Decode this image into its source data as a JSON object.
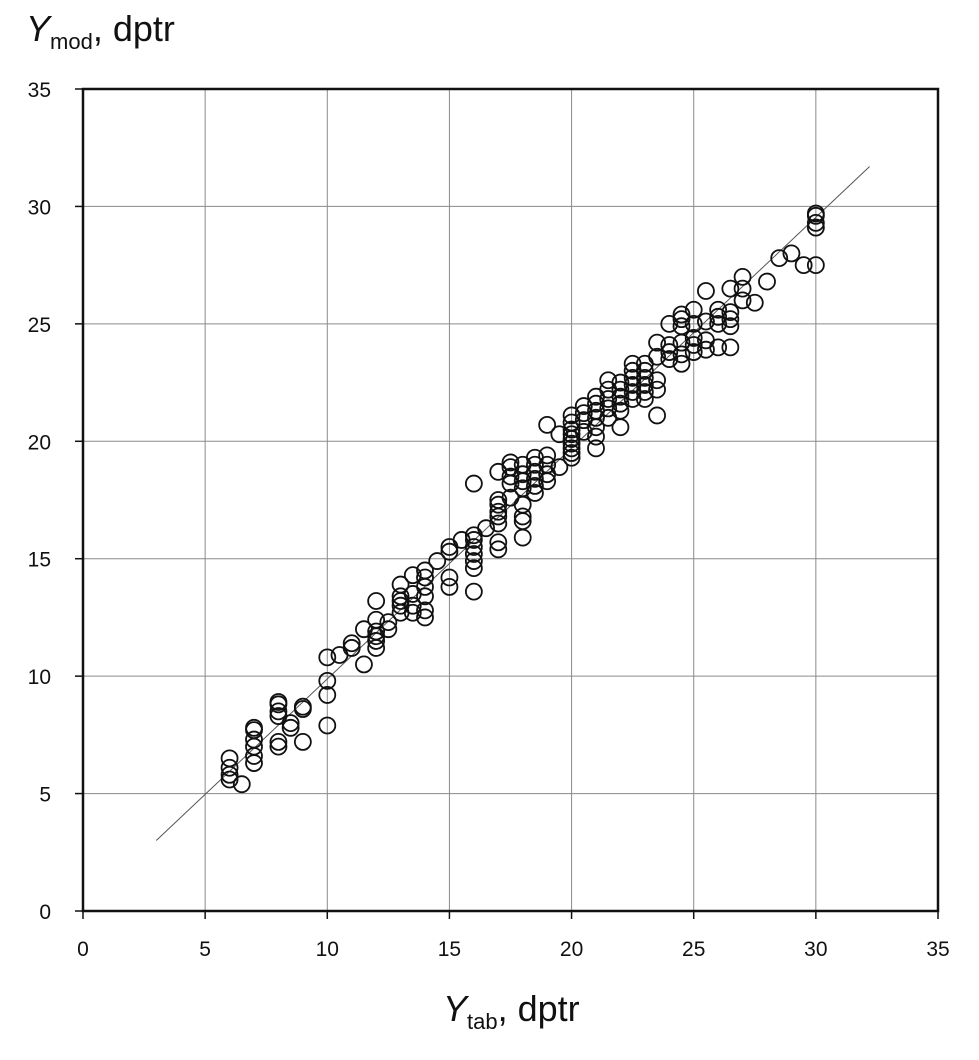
{
  "chart_data": {
    "type": "scatter",
    "title": "",
    "ylabel": {
      "var": "Y",
      "sub": "mod",
      "unit": ", dptr"
    },
    "xlabel": {
      "var": "Y",
      "sub": "tab",
      "unit": ", dptr"
    },
    "xlim": [
      0,
      35
    ],
    "ylim": [
      0,
      35
    ],
    "xticks": [
      0,
      5,
      10,
      15,
      20,
      25,
      30,
      35
    ],
    "yticks": [
      0,
      5,
      10,
      15,
      20,
      25,
      30,
      35
    ],
    "grid": true,
    "reference_line": {
      "from": [
        3,
        3
      ],
      "to": [
        32.2,
        31.7
      ]
    },
    "marker": "open-circle",
    "points": [
      [
        6.0,
        5.6
      ],
      [
        6.0,
        5.8
      ],
      [
        6.0,
        6.1
      ],
      [
        6.0,
        6.5
      ],
      [
        6.5,
        5.4
      ],
      [
        7.0,
        6.3
      ],
      [
        7.0,
        6.6
      ],
      [
        7.0,
        7.0
      ],
      [
        7.0,
        7.3
      ],
      [
        7.0,
        7.7
      ],
      [
        7.0,
        7.8
      ],
      [
        8.0,
        7.0
      ],
      [
        8.0,
        7.2
      ],
      [
        8.0,
        8.3
      ],
      [
        8.0,
        8.5
      ],
      [
        8.0,
        8.8
      ],
      [
        8.0,
        8.9
      ],
      [
        8.5,
        7.8
      ],
      [
        8.5,
        8.0
      ],
      [
        9.0,
        7.2
      ],
      [
        9.0,
        8.6
      ],
      [
        9.0,
        8.7
      ],
      [
        10.0,
        7.9
      ],
      [
        10.0,
        9.2
      ],
      [
        10.0,
        9.8
      ],
      [
        10.0,
        10.8
      ],
      [
        10.5,
        10.9
      ],
      [
        11.0,
        11.2
      ],
      [
        11.0,
        11.4
      ],
      [
        11.5,
        10.5
      ],
      [
        11.5,
        12.0
      ],
      [
        12.0,
        11.2
      ],
      [
        12.0,
        11.5
      ],
      [
        12.0,
        11.7
      ],
      [
        12.0,
        11.9
      ],
      [
        12.0,
        12.4
      ],
      [
        12.0,
        13.2
      ],
      [
        12.5,
        12.0
      ],
      [
        12.5,
        12.3
      ],
      [
        13.0,
        12.7
      ],
      [
        13.0,
        13.0
      ],
      [
        13.0,
        13.2
      ],
      [
        13.0,
        13.4
      ],
      [
        13.0,
        13.9
      ],
      [
        13.5,
        12.7
      ],
      [
        13.5,
        13.0
      ],
      [
        13.5,
        13.5
      ],
      [
        13.5,
        14.3
      ],
      [
        14.0,
        12.5
      ],
      [
        14.0,
        12.8
      ],
      [
        14.0,
        13.4
      ],
      [
        14.0,
        13.8
      ],
      [
        14.0,
        14.2
      ],
      [
        14.0,
        14.5
      ],
      [
        14.5,
        14.9
      ],
      [
        15.0,
        13.8
      ],
      [
        15.0,
        14.2
      ],
      [
        15.0,
        15.3
      ],
      [
        15.0,
        15.5
      ],
      [
        15.5,
        15.8
      ],
      [
        16.0,
        13.6
      ],
      [
        16.0,
        14.6
      ],
      [
        16.0,
        14.9
      ],
      [
        16.0,
        15.2
      ],
      [
        16.0,
        15.5
      ],
      [
        16.0,
        15.8
      ],
      [
        16.0,
        16.0
      ],
      [
        16.0,
        18.2
      ],
      [
        16.5,
        16.3
      ],
      [
        17.0,
        15.4
      ],
      [
        17.0,
        15.7
      ],
      [
        17.0,
        16.5
      ],
      [
        17.0,
        16.8
      ],
      [
        17.0,
        17.0
      ],
      [
        17.0,
        17.3
      ],
      [
        17.0,
        17.5
      ],
      [
        17.0,
        18.7
      ],
      [
        17.5,
        17.6
      ],
      [
        17.5,
        18.2
      ],
      [
        17.5,
        18.5
      ],
      [
        17.5,
        18.9
      ],
      [
        17.5,
        19.1
      ],
      [
        18.0,
        15.9
      ],
      [
        18.0,
        16.6
      ],
      [
        18.0,
        16.8
      ],
      [
        18.0,
        17.3
      ],
      [
        18.0,
        18.0
      ],
      [
        18.0,
        18.3
      ],
      [
        18.0,
        18.6
      ],
      [
        18.0,
        19.0
      ],
      [
        18.5,
        17.8
      ],
      [
        18.5,
        18.1
      ],
      [
        18.5,
        18.4
      ],
      [
        18.5,
        18.7
      ],
      [
        18.5,
        19.0
      ],
      [
        18.5,
        19.3
      ],
      [
        19.0,
        18.3
      ],
      [
        19.0,
        18.6
      ],
      [
        19.0,
        19.0
      ],
      [
        19.0,
        19.4
      ],
      [
        19.0,
        20.7
      ],
      [
        19.5,
        18.9
      ],
      [
        19.5,
        20.3
      ],
      [
        20.0,
        19.3
      ],
      [
        20.0,
        19.5
      ],
      [
        20.0,
        19.7
      ],
      [
        20.0,
        19.9
      ],
      [
        20.0,
        20.1
      ],
      [
        20.0,
        20.3
      ],
      [
        20.0,
        20.5
      ],
      [
        20.0,
        20.8
      ],
      [
        20.0,
        21.1
      ],
      [
        20.5,
        20.4
      ],
      [
        20.5,
        20.9
      ],
      [
        20.5,
        21.2
      ],
      [
        20.5,
        21.5
      ],
      [
        21.0,
        19.7
      ],
      [
        21.0,
        20.2
      ],
      [
        21.0,
        20.6
      ],
      [
        21.0,
        21.0
      ],
      [
        21.0,
        21.3
      ],
      [
        21.0,
        21.6
      ],
      [
        21.0,
        21.9
      ],
      [
        21.5,
        21.0
      ],
      [
        21.5,
        21.4
      ],
      [
        21.5,
        21.8
      ],
      [
        21.5,
        22.2
      ],
      [
        21.5,
        22.6
      ],
      [
        22.0,
        20.6
      ],
      [
        22.0,
        21.3
      ],
      [
        22.0,
        21.6
      ],
      [
        22.0,
        21.9
      ],
      [
        22.0,
        22.2
      ],
      [
        22.0,
        22.5
      ],
      [
        22.5,
        21.8
      ],
      [
        22.5,
        22.1
      ],
      [
        22.5,
        22.4
      ],
      [
        22.5,
        22.7
      ],
      [
        22.5,
        23.0
      ],
      [
        22.5,
        23.3
      ],
      [
        23.0,
        21.8
      ],
      [
        23.0,
        22.1
      ],
      [
        23.0,
        22.4
      ],
      [
        23.0,
        22.7
      ],
      [
        23.0,
        23.0
      ],
      [
        23.0,
        23.3
      ],
      [
        23.5,
        21.1
      ],
      [
        23.5,
        22.2
      ],
      [
        23.5,
        22.6
      ],
      [
        23.5,
        23.6
      ],
      [
        23.5,
        24.2
      ],
      [
        24.0,
        23.5
      ],
      [
        24.0,
        23.8
      ],
      [
        24.0,
        24.1
      ],
      [
        24.0,
        25.0
      ],
      [
        24.5,
        23.3
      ],
      [
        24.5,
        23.7
      ],
      [
        24.5,
        24.2
      ],
      [
        24.5,
        24.9
      ],
      [
        24.5,
        25.2
      ],
      [
        24.5,
        25.4
      ],
      [
        25.0,
        23.8
      ],
      [
        25.0,
        24.1
      ],
      [
        25.0,
        24.4
      ],
      [
        25.0,
        25.0
      ],
      [
        25.0,
        25.6
      ],
      [
        25.5,
        23.9
      ],
      [
        25.5,
        24.3
      ],
      [
        25.5,
        25.1
      ],
      [
        25.5,
        26.4
      ],
      [
        26.0,
        24.0
      ],
      [
        26.0,
        25.0
      ],
      [
        26.0,
        25.3
      ],
      [
        26.0,
        25.6
      ],
      [
        26.5,
        24.0
      ],
      [
        26.5,
        24.9
      ],
      [
        26.5,
        25.2
      ],
      [
        26.5,
        25.5
      ],
      [
        26.5,
        26.5
      ],
      [
        27.0,
        26.0
      ],
      [
        27.0,
        26.5
      ],
      [
        27.0,
        27.0
      ],
      [
        27.5,
        25.9
      ],
      [
        28.0,
        26.8
      ],
      [
        28.5,
        27.8
      ],
      [
        29.0,
        28.0
      ],
      [
        29.5,
        27.5
      ],
      [
        30.0,
        27.5
      ],
      [
        30.0,
        29.1
      ],
      [
        30.0,
        29.3
      ],
      [
        30.0,
        29.6
      ],
      [
        30.0,
        29.7
      ]
    ]
  }
}
